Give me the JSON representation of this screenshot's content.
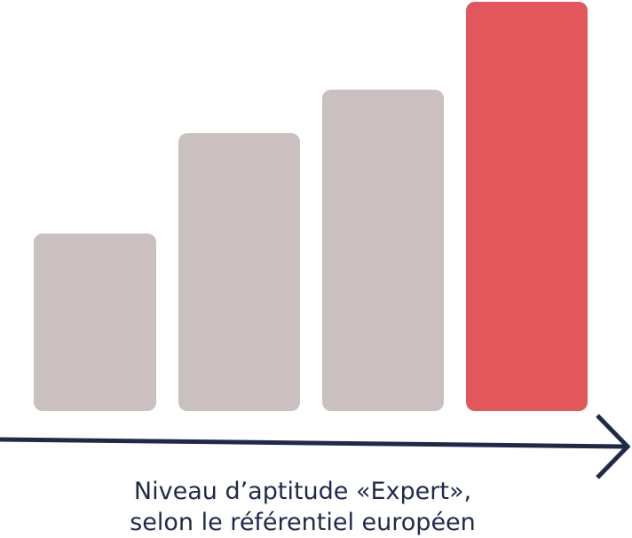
{
  "caption": {
    "lines": [
      "Niveau d’aptitude «Expert»,",
      "selon le référentiel européen"
    ]
  }
}
